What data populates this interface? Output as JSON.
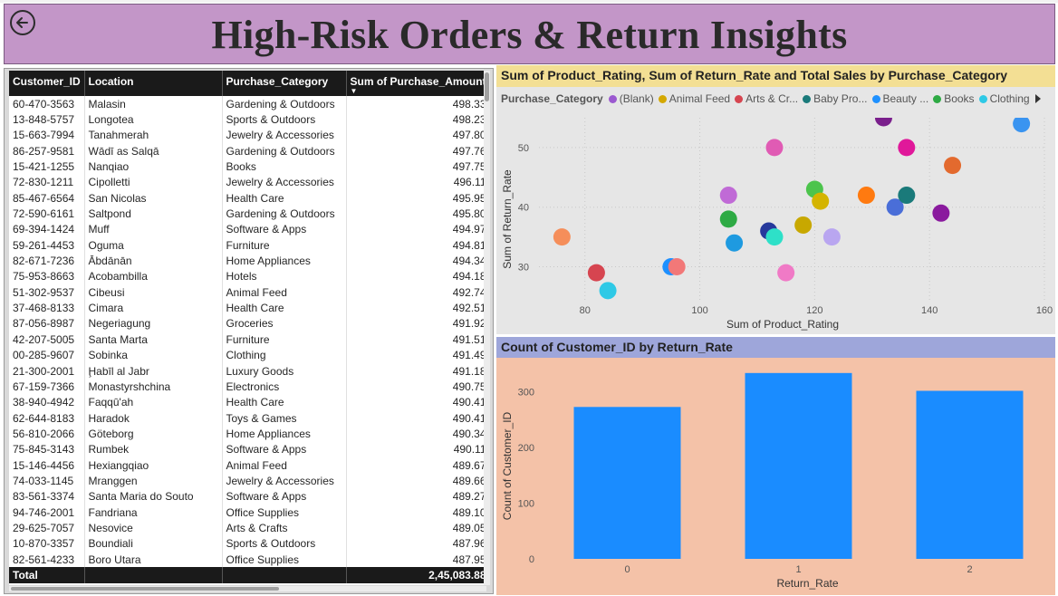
{
  "header": {
    "title": "High-Risk Orders & Return Insights"
  },
  "table": {
    "columns": [
      "Customer_ID",
      "Location",
      "Purchase_Category",
      "Sum of Purchase_Amount"
    ],
    "rows": [
      [
        "60-470-3563",
        "Malasin",
        "Gardening & Outdoors",
        "498.33"
      ],
      [
        "13-848-5757",
        "Longotea",
        "Sports & Outdoors",
        "498.23"
      ],
      [
        "15-663-7994",
        "Tanahmerah",
        "Jewelry & Accessories",
        "497.80"
      ],
      [
        "86-257-9581",
        "Wādī as Salqā",
        "Gardening & Outdoors",
        "497.76"
      ],
      [
        "15-421-1255",
        "Nanqiao",
        "Books",
        "497.75"
      ],
      [
        "72-830-1211",
        "Cipolletti",
        "Jewelry & Accessories",
        "496.11"
      ],
      [
        "85-467-6564",
        "San Nicolas",
        "Health Care",
        "495.95"
      ],
      [
        "72-590-6161",
        "Saltpond",
        "Gardening & Outdoors",
        "495.80"
      ],
      [
        "69-394-1424",
        "Muff",
        "Software & Apps",
        "494.97"
      ],
      [
        "59-261-4453",
        "Oguma",
        "Furniture",
        "494.81"
      ],
      [
        "82-671-7236",
        "Ābdānān",
        "Home Appliances",
        "494.34"
      ],
      [
        "75-953-8663",
        "Acobambilla",
        "Hotels",
        "494.18"
      ],
      [
        "51-302-9537",
        "Cibeusi",
        "Animal Feed",
        "492.74"
      ],
      [
        "37-468-8133",
        "Cimara",
        "Health Care",
        "492.51"
      ],
      [
        "87-056-8987",
        "Negeriagung",
        "Groceries",
        "491.92"
      ],
      [
        "42-207-5005",
        "Santa Marta",
        "Furniture",
        "491.51"
      ],
      [
        "00-285-9607",
        "Sobinka",
        "Clothing",
        "491.49"
      ],
      [
        "21-300-2001",
        "Ḩabīl al Jabr",
        "Luxury Goods",
        "491.18"
      ],
      [
        "67-159-7366",
        "Monastyrshchina",
        "Electronics",
        "490.75"
      ],
      [
        "38-940-4942",
        "Faqqū'ah",
        "Health Care",
        "490.41"
      ],
      [
        "62-644-8183",
        "Haradok",
        "Toys & Games",
        "490.41"
      ],
      [
        "56-810-2066",
        "Göteborg",
        "Home Appliances",
        "490.34"
      ],
      [
        "75-845-3143",
        "Rumbek",
        "Software & Apps",
        "490.11"
      ],
      [
        "15-146-4456",
        "Hexiangqiao",
        "Animal Feed",
        "489.67"
      ],
      [
        "74-033-1145",
        "Mranggen",
        "Jewelry & Accessories",
        "489.66"
      ],
      [
        "83-561-3374",
        "Santa Maria do Souto",
        "Software & Apps",
        "489.27"
      ],
      [
        "94-746-2001",
        "Fandriana",
        "Office Supplies",
        "489.10"
      ],
      [
        "29-625-7057",
        "Nesovice",
        "Arts & Crafts",
        "489.05"
      ],
      [
        "10-870-3357",
        "Boundiali",
        "Sports & Outdoors",
        "487.96"
      ],
      [
        "82-561-4233",
        "Boro Utara",
        "Office Supplies",
        "487.95"
      ]
    ],
    "total_label": "Total",
    "total_value": "2,45,083.88"
  },
  "scatter": {
    "title": "Sum of Product_Rating, Sum of Return_Rate and Total Sales by Purchase_Category",
    "legend_title": "Purchase_Category",
    "legend": [
      {
        "label": "(Blank)",
        "color": "#9b59d0"
      },
      {
        "label": "Animal Feed",
        "color": "#d4a800"
      },
      {
        "label": "Arts & Cr...",
        "color": "#d64550"
      },
      {
        "label": "Baby Pro...",
        "color": "#1a7a7a"
      },
      {
        "label": "Beauty ...",
        "color": "#1e90ff"
      },
      {
        "label": "Books",
        "color": "#2eaa44"
      },
      {
        "label": "Clothing",
        "color": "#2ec9e6"
      }
    ]
  },
  "bar": {
    "title": "Count of Customer_ID by Return_Rate"
  },
  "chart_data": [
    {
      "type": "scatter",
      "title": "Sum of Product_Rating, Sum of Return_Rate and Total Sales by Purchase_Category",
      "xlabel": "Sum of Product_Rating",
      "ylabel": "Sum of Return_Rate",
      "xlim": [
        72,
        160
      ],
      "ylim": [
        24,
        55
      ],
      "xticks": [
        80,
        100,
        120,
        140,
        160
      ],
      "yticks": [
        30,
        40,
        50
      ],
      "grid": true,
      "legend_placement": "top",
      "points": [
        {
          "x": 76,
          "y": 35,
          "color": "#f58e5a"
        },
        {
          "x": 82,
          "y": 29,
          "color": "#d64550"
        },
        {
          "x": 84,
          "y": 26,
          "color": "#2ec9e6"
        },
        {
          "x": 95,
          "y": 30,
          "color": "#1e90ff"
        },
        {
          "x": 96,
          "y": 30,
          "color": "#f27878"
        },
        {
          "x": 105,
          "y": 42,
          "color": "#c06ad6"
        },
        {
          "x": 105,
          "y": 38,
          "color": "#2eaa44"
        },
        {
          "x": 106,
          "y": 34,
          "color": "#1e9ae0"
        },
        {
          "x": 112,
          "y": 36,
          "color": "#26399c"
        },
        {
          "x": 113,
          "y": 50,
          "color": "#e05bb4"
        },
        {
          "x": 113,
          "y": 35,
          "color": "#2ee0c8"
        },
        {
          "x": 115,
          "y": 29,
          "color": "#f07ac6"
        },
        {
          "x": 118,
          "y": 37,
          "color": "#c8a800"
        },
        {
          "x": 120,
          "y": 43,
          "color": "#4cc44c"
        },
        {
          "x": 121,
          "y": 41,
          "color": "#d4b400"
        },
        {
          "x": 123,
          "y": 35,
          "color": "#b9a6f0"
        },
        {
          "x": 129,
          "y": 42,
          "color": "#ff7a10"
        },
        {
          "x": 132,
          "y": 55,
          "color": "#7a1f8c"
        },
        {
          "x": 134,
          "y": 40,
          "color": "#4a6ed8"
        },
        {
          "x": 136,
          "y": 50,
          "color": "#e0189a"
        },
        {
          "x": 136,
          "y": 42,
          "color": "#1a7a7a"
        },
        {
          "x": 142,
          "y": 39,
          "color": "#8a1a9e"
        },
        {
          "x": 144,
          "y": 47,
          "color": "#e36a2e"
        },
        {
          "x": 156,
          "y": 54,
          "color": "#3a94f0"
        }
      ]
    },
    {
      "type": "bar",
      "title": "Count of Customer_ID by Return_Rate",
      "xlabel": "Return_Rate",
      "ylabel": "Count of Customer_ID",
      "categories": [
        "0",
        "1",
        "2"
      ],
      "values": [
        273,
        334,
        302
      ],
      "ylim": [
        0,
        350
      ],
      "yticks": [
        0,
        100,
        200,
        300
      ],
      "color": "#1a8cff"
    }
  ]
}
